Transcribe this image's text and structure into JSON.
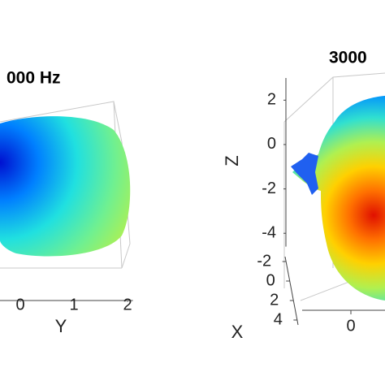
{
  "chart_data": [
    {
      "type": "surface3d",
      "title": "000 Hz",
      "ylabel": "Y",
      "ylim": [
        -0.4,
        2.1
      ],
      "yticks": [
        0,
        1,
        2
      ]
    },
    {
      "type": "surface3d",
      "title": "3000",
      "zlabel": "Z",
      "zlim": [
        -4.6,
        3
      ],
      "zticks": [
        -4,
        -2,
        0,
        2
      ],
      "xlabel": "X",
      "xlim": [
        -2.5,
        4.5
      ],
      "xticks": [
        -2,
        0,
        2,
        4
      ],
      "ylim": [
        -1,
        1
      ],
      "yticks": [
        0
      ]
    }
  ]
}
